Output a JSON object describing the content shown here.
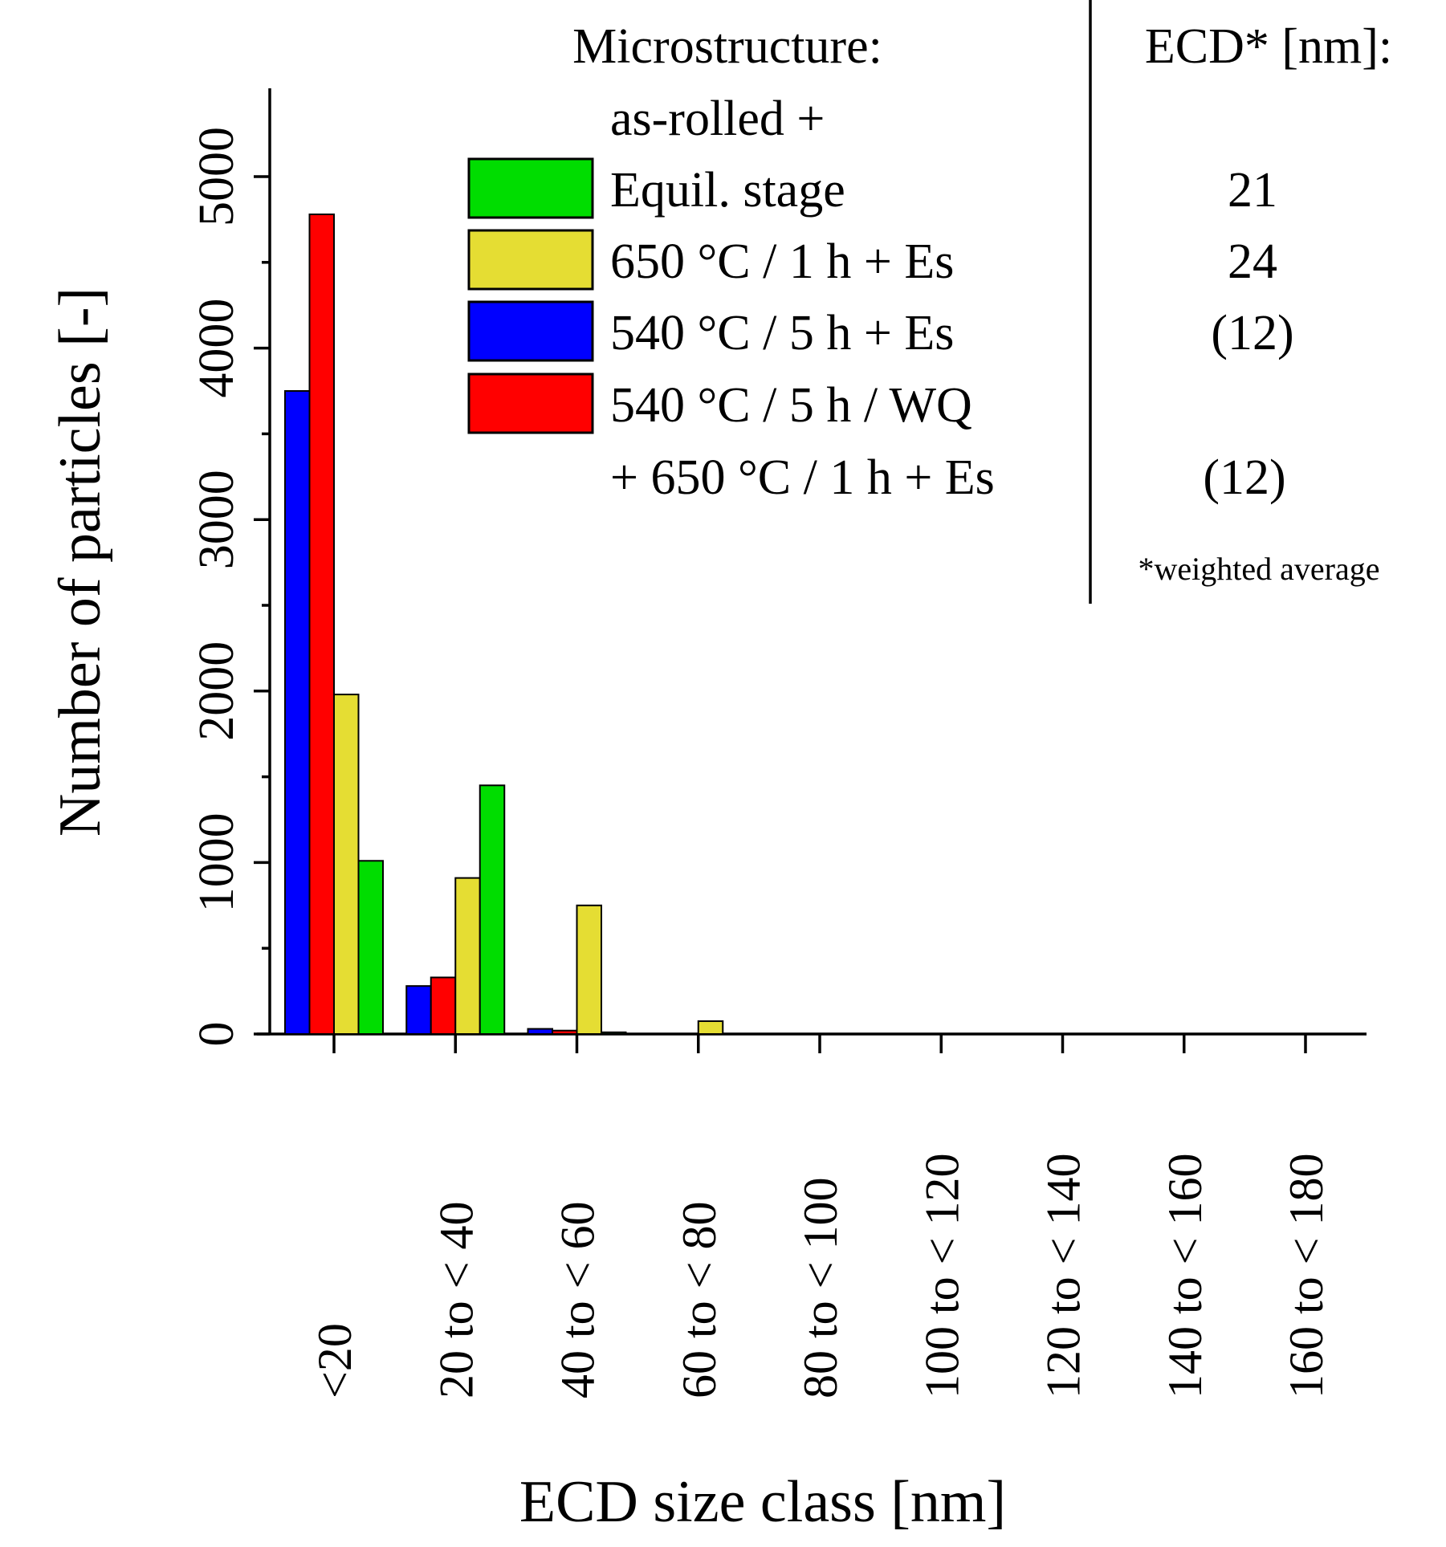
{
  "chart_data": {
    "type": "bar",
    "title": "",
    "xlabel": "ECD size class [nm]",
    "ylabel": "Number of particles [-]",
    "ylim": [
      0,
      5500
    ],
    "yticks": [
      0,
      1000,
      2000,
      3000,
      4000,
      5000
    ],
    "ytick_labels": [
      "0",
      "1000",
      "2000",
      "3000",
      "4000",
      "5000"
    ],
    "categories": [
      "<20",
      "20 to < 40",
      "40 to < 60",
      "60 to < 80",
      "80 to < 100",
      "100 to < 120",
      "120 to < 140",
      "140 to < 160",
      "160 to < 180"
    ],
    "series": [
      {
        "name": "540 °C / 5 h + Es",
        "color": "#0000ff",
        "values": [
          3750,
          280,
          30,
          0,
          0,
          0,
          0,
          0,
          0
        ]
      },
      {
        "name": "540 °C / 5 h / WQ + 650 °C / 1 h + Es",
        "color": "#ff0000",
        "values": [
          4780,
          330,
          20,
          0,
          0,
          0,
          0,
          0,
          0
        ]
      },
      {
        "name": "650 °C / 1 h + Es",
        "color": "#e5dd33",
        "values": [
          1980,
          910,
          750,
          75,
          0,
          0,
          0,
          0,
          0
        ]
      },
      {
        "name": "Equil. stage",
        "color": "#00dd00",
        "values": [
          1010,
          1450,
          10,
          0,
          0,
          0,
          0,
          0,
          0
        ]
      }
    ],
    "legend": {
      "header": "Microstructure:",
      "subheader": "as-rolled +",
      "ecd_header": "ECD* [nm]:",
      "footnote": "*weighted average",
      "entries": [
        {
          "label": "Equil. stage",
          "color": "#00dd00",
          "ecd": "21"
        },
        {
          "label": "650 °C / 1 h + Es",
          "color": "#e5dd33",
          "ecd": "24"
        },
        {
          "label": "540 °C / 5 h + Es",
          "color": "#0000ff",
          "ecd": "(12)"
        },
        {
          "label": "540 °C / 5 h / WQ",
          "label2": "+ 650 °C / 1 h  + Es",
          "color": "#ff0000",
          "ecd": "(12)"
        }
      ]
    }
  }
}
